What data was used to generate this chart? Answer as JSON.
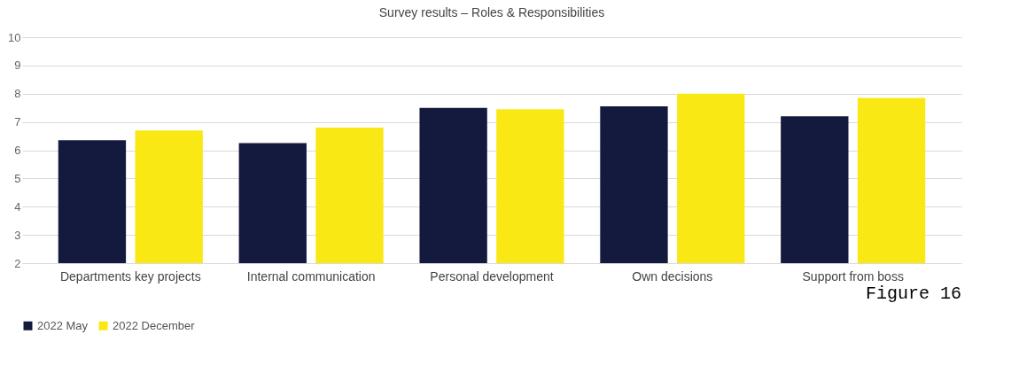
{
  "chart_data": {
    "type": "bar",
    "title": "Survey results – Roles & Responsibilities",
    "categories": [
      "Departments key projects",
      "Internal communication",
      "Personal development",
      "Own decisions",
      "Support from boss"
    ],
    "series": [
      {
        "name": "2022 May",
        "color": "#141a3e",
        "values": [
          6.35,
          6.25,
          7.5,
          7.55,
          7.2
        ]
      },
      {
        "name": "2022 December",
        "color": "#f9e814",
        "values": [
          6.7,
          6.8,
          7.45,
          8.0,
          7.85
        ]
      }
    ],
    "ylim": [
      2,
      10
    ],
    "yticks": [
      2,
      3,
      4,
      5,
      6,
      7,
      8,
      9,
      10
    ],
    "grid": "y",
    "legend": "bottom",
    "annotations": [
      "Figure 16"
    ]
  }
}
